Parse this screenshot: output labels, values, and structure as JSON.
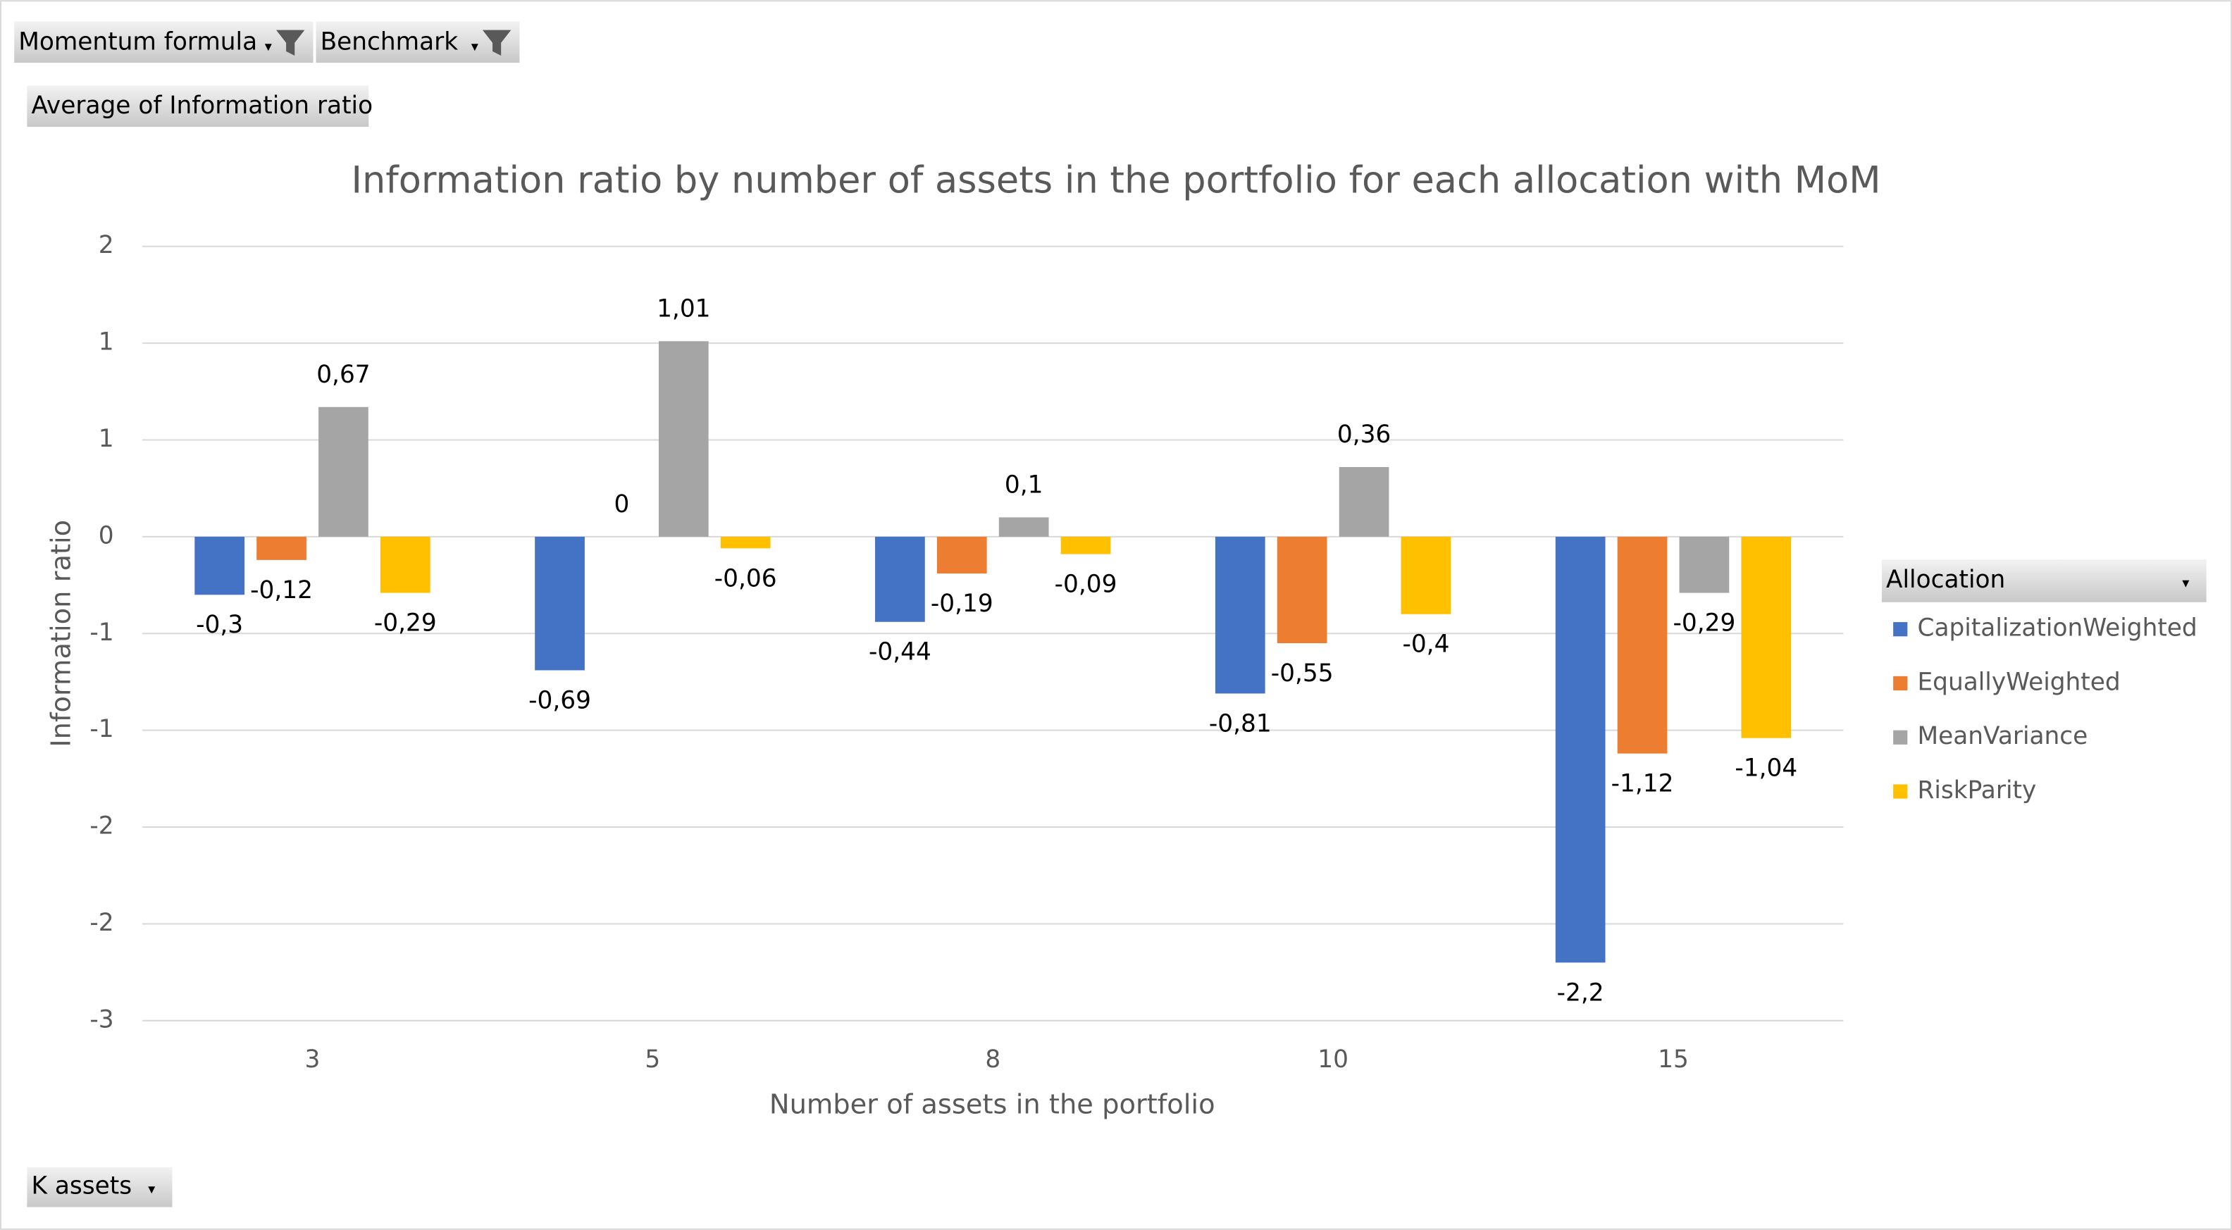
{
  "pivot_buttons": {
    "filters": [
      "Momentum formula",
      "Benchmark"
    ],
    "value_field": "Average of Information ratio",
    "axis_field": "K assets"
  },
  "chart_data": {
    "type": "bar",
    "title": "Information ratio by number of assets in the portfolio for each allocation with MoM",
    "x_label": "Number of assets in the portfolio",
    "y_label": "Information ratio",
    "legend_title": "Allocation",
    "legend_position": "right",
    "grid": true,
    "categories": [
      "3",
      "5",
      "8",
      "10",
      "15"
    ],
    "series": [
      {
        "name": "CapitalizationWeighted",
        "color": "#4472c4",
        "values": [
          -0.3,
          -0.69,
          -0.44,
          -0.81,
          -2.2
        ],
        "value_labels": [
          "-0,3",
          "-0,69",
          "-0,44",
          "-0,81",
          "-2,2"
        ]
      },
      {
        "name": "EquallyWeighted",
        "color": "#ed7d31",
        "values": [
          -0.12,
          0,
          -0.19,
          -0.55,
          -1.12
        ],
        "value_labels": [
          "-0,12",
          "0",
          "-0,19",
          "-0,55",
          "-1,12"
        ]
      },
      {
        "name": "MeanVariance",
        "color": "#a5a5a5",
        "values": [
          0.67,
          1.01,
          0.1,
          0.36,
          -0.29
        ],
        "value_labels": [
          "0,67",
          "1,01",
          "0,1",
          "0,36",
          "-0,29"
        ]
      },
      {
        "name": "RiskParity",
        "color": "#ffc000",
        "values": [
          -0.29,
          -0.06,
          -0.09,
          -0.4,
          -1.04
        ],
        "value_labels": [
          "-0,29",
          "-0,06",
          "-0,09",
          "-0,4",
          "-1,04"
        ]
      }
    ],
    "ylim": [
      -2.5,
      1.5
    ],
    "yticks": [
      {
        "value": 1.5,
        "label": "2"
      },
      1,
      {
        "value": 0.5,
        "label": "1"
      },
      0,
      {
        "value": -0.5,
        "label": "-1"
      },
      -1,
      {
        "value": -1.5,
        "label": "-2"
      },
      -2,
      {
        "value": -2.5,
        "label": "-3"
      }
    ]
  }
}
